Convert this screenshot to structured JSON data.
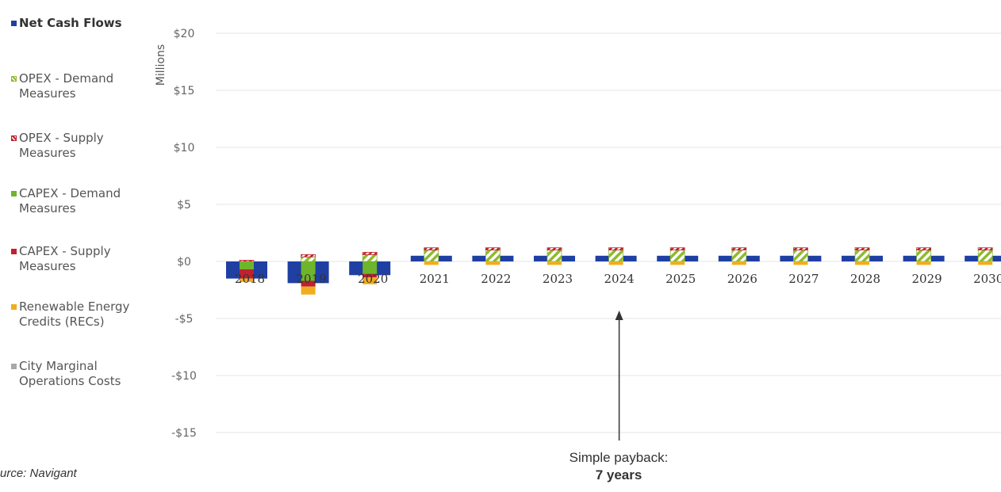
{
  "chart_data": {
    "type": "bar",
    "ylabel": "Millions",
    "ylim": [
      -15,
      20
    ],
    "yticks": [
      -15,
      -10,
      -5,
      0,
      5,
      10,
      15,
      20
    ],
    "ytick_labels": [
      "-$15",
      "-$10",
      "-$5",
      "$0",
      "$5",
      "$10",
      "$15",
      "$20"
    ],
    "grid": true,
    "legend_position": "left",
    "categories": [
      "2018",
      "2019",
      "2020",
      "2021",
      "2022",
      "2023",
      "2024",
      "2025",
      "2026",
      "2027",
      "2028",
      "2029",
      "2030"
    ],
    "series": [
      {
        "name": "Net Cash Flows",
        "color": "#1f3fa3",
        "kind": "wide-bar",
        "values": [
          -1.5,
          -1.9,
          -1.2,
          0.5,
          0.5,
          0.5,
          0.5,
          0.5,
          0.5,
          0.5,
          0.5,
          0.5,
          0.5
        ]
      },
      {
        "name": "OPEX - Demand Measures",
        "color": "#8dbb2e",
        "kind": "stack",
        "pattern": "hatch",
        "values": [
          0,
          0.4,
          0.6,
          1.0,
          1.0,
          1.0,
          1.0,
          1.0,
          1.0,
          1.0,
          1.0,
          1.0,
          1.0
        ]
      },
      {
        "name": "OPEX - Supply Measures",
        "color": "#c0212f",
        "kind": "stack",
        "pattern": "hatch",
        "values": [
          0.1,
          0.2,
          0.2,
          0.2,
          0.2,
          0.2,
          0.2,
          0.2,
          0.2,
          0.2,
          0.2,
          0.2,
          0.2
        ]
      },
      {
        "name": "CAPEX - Demand Measures",
        "color": "#6fb52c",
        "kind": "stack",
        "values": [
          -0.7,
          -1.7,
          -1.1,
          0,
          0,
          0,
          0,
          0,
          0,
          0,
          0,
          0,
          0
        ]
      },
      {
        "name": "CAPEX - Supply Measures",
        "color": "#c0212f",
        "kind": "stack",
        "values": [
          -0.8,
          -0.5,
          -0.3,
          0,
          0,
          0,
          0,
          0,
          0,
          0,
          0,
          0,
          0
        ]
      },
      {
        "name": "Renewable Energy Credits (RECs)",
        "color": "#f0ad1e",
        "kind": "stack",
        "values": [
          -0.3,
          -0.7,
          -0.6,
          -0.3,
          -0.3,
          -0.3,
          -0.3,
          -0.3,
          -0.3,
          -0.3,
          -0.3,
          -0.3,
          -0.3
        ]
      },
      {
        "name": "City Marginal Operations Costs",
        "color": "#a8a8a8",
        "kind": "stack",
        "values": [
          0,
          0,
          0,
          0,
          0,
          0,
          0,
          0,
          0,
          0,
          0,
          0,
          0
        ]
      }
    ],
    "annotation": {
      "target_category": "2024",
      "line1": "Simple payback:",
      "line2": "7 years"
    }
  },
  "legend": [
    {
      "label": "Net Cash Flows",
      "color": "#1f3fa3",
      "icon": "square-icon",
      "bold": true
    },
    {
      "label": "OPEX - Demand Measures",
      "color": "#8dbb2e",
      "icon": "hatched-square-icon"
    },
    {
      "label": "OPEX - Supply Measures",
      "color": "#c0212f",
      "icon": "hatched-square-icon"
    },
    {
      "label": "CAPEX - Demand Measures",
      "color": "#6fb52c",
      "icon": "square-icon"
    },
    {
      "label": "CAPEX - Supply Measures",
      "color": "#c0212f",
      "icon": "square-icon"
    },
    {
      "label": "Renewable Energy Credits (RECs)",
      "color": "#f0ad1e",
      "icon": "square-icon"
    },
    {
      "label": "City Marginal Operations Costs",
      "color": "#a8a8a8",
      "icon": "square-icon"
    }
  ],
  "source_text": "urce: Navigant"
}
